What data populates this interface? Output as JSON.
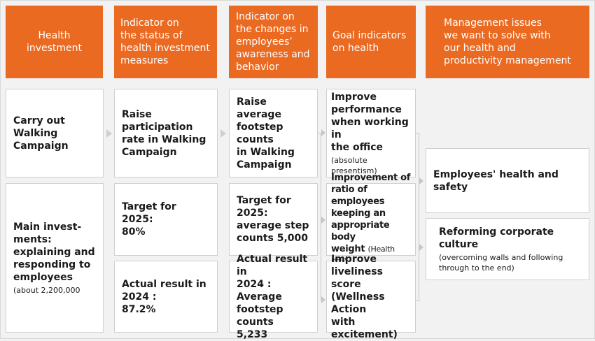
{
  "headers": [
    "Health\ninvestment",
    "Indicator on\nthe status of\nhealth investment\nmeasures",
    "Indicator on\nthe changes in\nemployees’\nawareness and\nbehavior",
    "Goal indicators\non health",
    "Management issues\nwe want to solve with\nour health and\nproductivity management"
  ],
  "col1": {
    "walking": "Carry out Walking\nCampaign",
    "investments_main": "Main invest-\nments:\nexplaining and\nresponding to\nemployees",
    "investments_sub": "(about 2,200,000"
  },
  "col2": {
    "participation": "Raise participation\nrate in Walking\nCampaign",
    "target": "Target for 2025:\n80%",
    "actual": "Actual result in\n2024 :\n87.2%"
  },
  "col3": {
    "footsteps": "Raise average\nfootstep counts\nin Walking\nCampaign",
    "target": "Target for\n2025:\naverage step\ncounts  5,000",
    "actual": "Actual result in\n2024 :\nAverage\nfootstep counts\n5,233"
  },
  "col4": {
    "performance_main": "Improve\nperformance\nwhen working in\nthe office",
    "performance_sub": "(absolute\npresentism)",
    "weight_main": "Improvement of\nratio of employees\nkeeping an\nappropriate body\nweight",
    "weight_sub": "(Health risk)",
    "liveliness": "Improve\nliveliness score\n(Wellness Action\nwith excitement)"
  },
  "col5": {
    "health_safety": "Employees' health and safety",
    "culture_main": "Reforming corporate culture",
    "culture_sub": "(overcoming walls and following\nthrough to the end)"
  }
}
